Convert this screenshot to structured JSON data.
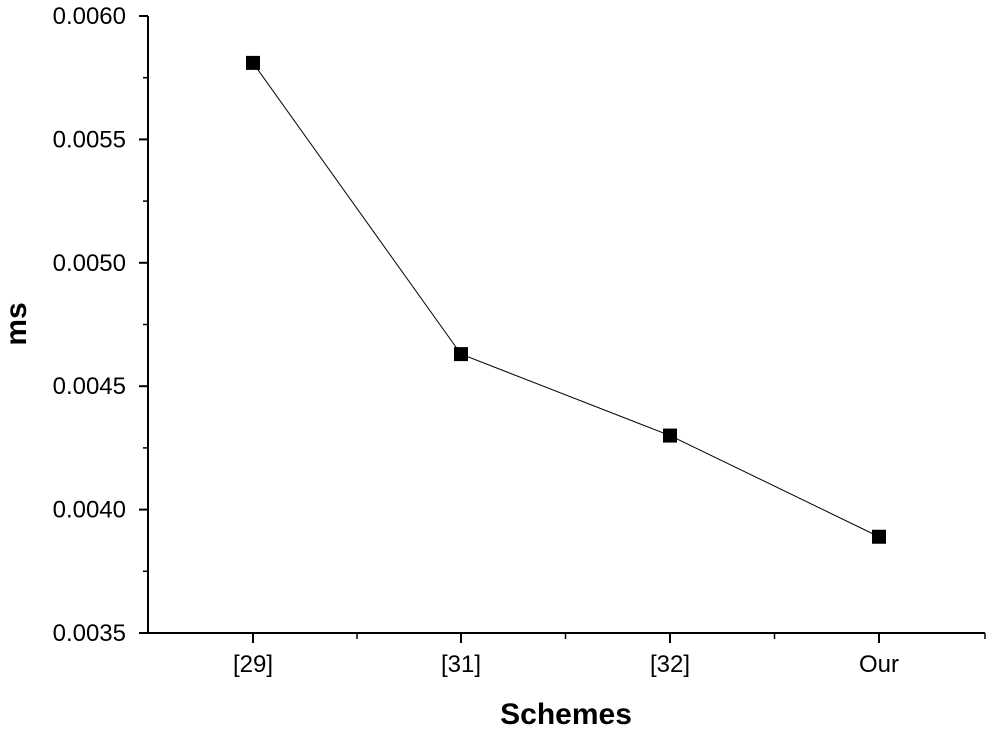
{
  "chart_data": {
    "type": "line",
    "title": "",
    "xlabel": "Schemes",
    "ylabel": "ms",
    "categories": [
      "[29]",
      "[31]",
      "[32]",
      "Our"
    ],
    "series": [
      {
        "values": [
          0.00581,
          0.00463,
          0.0043,
          0.00389
        ]
      }
    ],
    "ylim": [
      0.0035,
      0.006
    ],
    "yticks": [
      "0.0035",
      "0.0040",
      "0.0045",
      "0.0050",
      "0.0055",
      "0.0060"
    ],
    "grid": false,
    "legend": "none",
    "marker": "square",
    "line_color": "#000000",
    "marker_color": "#000000"
  }
}
